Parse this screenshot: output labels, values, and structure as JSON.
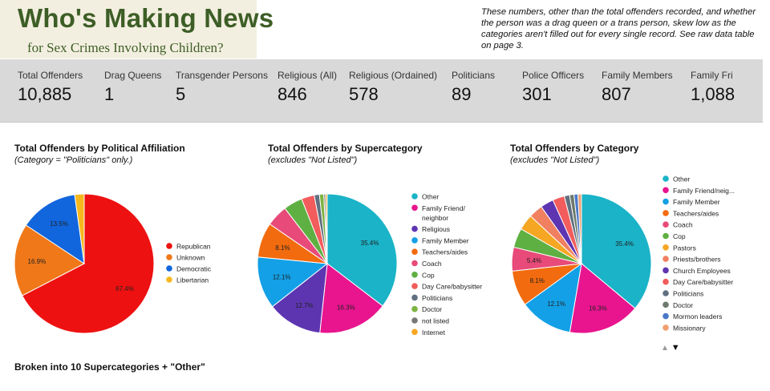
{
  "header": {
    "title": "Who's Making News",
    "subtitle": "for Sex Crimes Involving Children?",
    "note": "These numbers, other than the total offenders recorded, and whether the person was a drag queen or a trans person, skew low as the categories aren't filled out for every single record. See raw data table on page 3."
  },
  "stats": [
    {
      "label": "Total Offenders",
      "value": "10,885"
    },
    {
      "label": "Drag Queens",
      "value": "1"
    },
    {
      "label": "Transgender Persons",
      "value": "5"
    },
    {
      "label": "Religious (All)",
      "value": "846"
    },
    {
      "label": "Religious (Ordained)",
      "value": "578"
    },
    {
      "label": "Politicians",
      "value": "89"
    },
    {
      "label": "Police Officers",
      "value": "301"
    },
    {
      "label": "Family Members",
      "value": "807"
    },
    {
      "label": "Family Fri",
      "value": "1,088"
    }
  ],
  "charts": {
    "political": {
      "title": "Total Offenders by Political Affiliation",
      "subtitle": "(Category = \"Politicians\" only.)"
    },
    "supercategory": {
      "title": "Total Offenders by Supercategory",
      "subtitle": "(excludes \"Not Listed\")"
    },
    "category": {
      "title": "Total Offenders by Category",
      "subtitle": "(excludes \"Not Listed\")"
    }
  },
  "bottom": {
    "title": "Broken into 10 Supercategories + \"Other\""
  },
  "pager": {
    "up_icon": "triangle-up-icon",
    "down_icon": "triangle-down-icon"
  },
  "chart_data": [
    {
      "type": "pie",
      "title": "Total Offenders by Political Affiliation",
      "subtitle": "(Category = \"Politicians\" only.)",
      "legend_position": "right",
      "slices": [
        {
          "label": "Republican",
          "value": 67.4,
          "color": "#ee1111",
          "data_label": "67.4%"
        },
        {
          "label": "Unknown",
          "value": 16.9,
          "color": "#f07818",
          "data_label": "16.9%"
        },
        {
          "label": "Democratic",
          "value": 13.5,
          "color": "#1166dd",
          "data_label": "13.5%"
        },
        {
          "label": "Libertarian",
          "value": 2.2,
          "color": "#f7b81e",
          "data_label": ""
        }
      ]
    },
    {
      "type": "pie",
      "title": "Total Offenders by Supercategory",
      "subtitle": "(excludes \"Not Listed\")",
      "legend_position": "right",
      "slices": [
        {
          "label": "Other",
          "value": 35.4,
          "color": "#1ab3c8",
          "data_label": "35.4%"
        },
        {
          "label": "Family Friend/ neighbor",
          "value": 16.3,
          "color": "#e8158e",
          "data_label": "16.3%"
        },
        {
          "label": "Religious",
          "value": 12.7,
          "color": "#5e35b1",
          "data_label": "12.7%"
        },
        {
          "label": "Family Member",
          "value": 12.1,
          "color": "#13a0e6",
          "data_label": "12.1%"
        },
        {
          "label": "Teachers/aides",
          "value": 8.1,
          "color": "#f26b0f",
          "data_label": "8.1%"
        },
        {
          "label": "Coach",
          "value": 5.0,
          "color": "#e84a79",
          "data_label": ""
        },
        {
          "label": "Cop",
          "value": 4.4,
          "color": "#5fb043",
          "data_label": ""
        },
        {
          "label": "Day Care/babysitter",
          "value": 3.0,
          "color": "#f25c5c",
          "data_label": ""
        },
        {
          "label": "Politicians",
          "value": 1.2,
          "color": "#607080",
          "data_label": ""
        },
        {
          "label": "Doctor",
          "value": 1.0,
          "color": "#7cb342",
          "data_label": ""
        },
        {
          "label": "not listed",
          "value": 0.4,
          "color": "#777777",
          "data_label": ""
        },
        {
          "label": "Internet",
          "value": 0.4,
          "color": "#f5a623",
          "data_label": ""
        }
      ]
    },
    {
      "type": "pie",
      "title": "Total Offenders by Category",
      "subtitle": "(excludes \"Not Listed\")",
      "legend_position": "right",
      "slices": [
        {
          "label": "Other",
          "value": 35.4,
          "color": "#1ab3c8",
          "data_label": "35.4%"
        },
        {
          "label": "Family Friend/neig...",
          "value": 16.3,
          "color": "#e8158e",
          "data_label": "16.3%"
        },
        {
          "label": "Family Member",
          "value": 12.1,
          "color": "#13a0e6",
          "data_label": "12.1%"
        },
        {
          "label": "Teachers/aides",
          "value": 8.1,
          "color": "#f26b0f",
          "data_label": "8.1%"
        },
        {
          "label": "Coach",
          "value": 5.4,
          "color": "#e84a79",
          "data_label": "5.4%"
        },
        {
          "label": "Cop",
          "value": 4.4,
          "color": "#5fb043",
          "data_label": ""
        },
        {
          "label": "Pastors",
          "value": 3.6,
          "color": "#f5a623",
          "data_label": ""
        },
        {
          "label": "Priests/brothers",
          "value": 3.2,
          "color": "#f08060",
          "data_label": ""
        },
        {
          "label": "Church Employees",
          "value": 3.0,
          "color": "#5e35b1",
          "data_label": ""
        },
        {
          "label": "Day Care/babysitter",
          "value": 2.7,
          "color": "#f25c5c",
          "data_label": ""
        },
        {
          "label": "Politicians",
          "value": 1.2,
          "color": "#607080",
          "data_label": ""
        },
        {
          "label": "Doctor",
          "value": 1.0,
          "color": "#6d7a6d",
          "data_label": ""
        },
        {
          "label": "Mormon leaders",
          "value": 0.9,
          "color": "#4a78c8",
          "data_label": ""
        },
        {
          "label": "Missionary",
          "value": 0.8,
          "color": "#f0a070",
          "data_label": ""
        }
      ]
    }
  ]
}
